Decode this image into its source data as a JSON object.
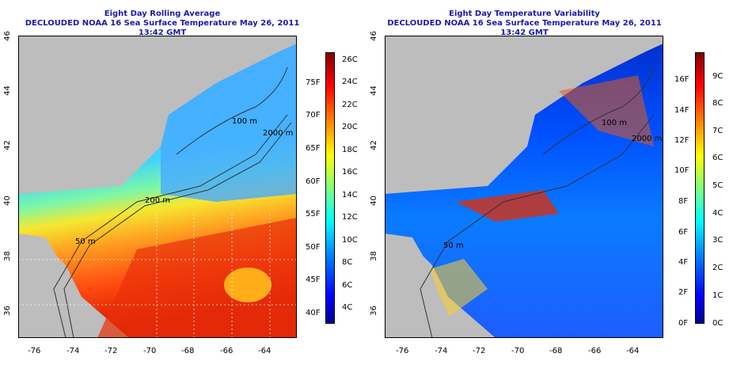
{
  "left": {
    "title1": "Eight Day Rolling Average",
    "title2": "DECLOUDED NOAA 16 Sea Surface Temperature May 26, 2011 13:42 GMT",
    "lat_ticks": [
      "46",
      "44",
      "42",
      "40",
      "38",
      "36"
    ],
    "lon_ticks": [
      "-76",
      "-74",
      "-72",
      "-70",
      "-68",
      "-66",
      "-64"
    ],
    "contours": [
      "100 m",
      "100 m",
      "2000 m",
      "200 m",
      "200 m",
      "50 m"
    ],
    "colorbar_celsius": [
      "26C",
      "24C",
      "22C",
      "20C",
      "18C",
      "16C",
      "14C",
      "12C",
      "10C",
      "8C",
      "6C",
      "4C"
    ],
    "colorbar_fahrenheit": [
      "75F",
      "70F",
      "65F",
      "60F",
      "55F",
      "50F",
      "45F",
      "40F"
    ]
  },
  "right": {
    "title1": "Eight Day Temperature Variability",
    "title2": "DECLOUDED NOAA 16 Sea Surface Temperature May 26, 2011 13:42 GMT",
    "lat_ticks": [
      "46",
      "44",
      "42",
      "40",
      "38",
      "36"
    ],
    "lon_ticks": [
      "-76",
      "-74",
      "-72",
      "-70",
      "-68",
      "-66",
      "-64"
    ],
    "contours": [
      "100 m",
      "2000 m",
      "50 m"
    ],
    "colorbar_celsius": [
      "9C",
      "8C",
      "7C",
      "6C",
      "5C",
      "4C",
      "3C",
      "2C",
      "1C",
      "0C"
    ],
    "colorbar_fahrenheit": [
      "16F",
      "14F",
      "12F",
      "10F",
      "8F",
      "6F",
      "4F",
      "2F",
      "0F"
    ]
  },
  "colors": {
    "title": "#1a1aa8",
    "land": "#bdbdbd",
    "sst_scale": [
      "#00008f",
      "#0000ff",
      "#0060ff",
      "#00bfff",
      "#30ffcf",
      "#9fff60",
      "#ffff00",
      "#ffa000",
      "#ff3000",
      "#c00000",
      "#800000"
    ]
  }
}
